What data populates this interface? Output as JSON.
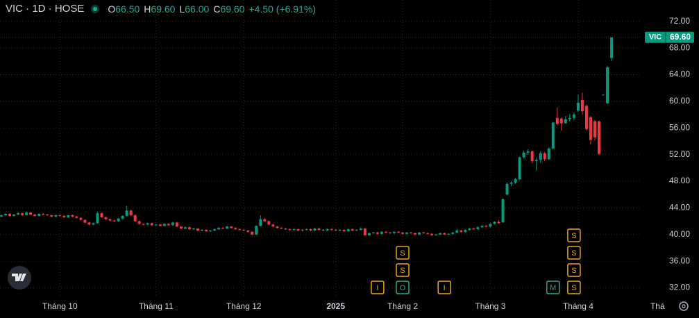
{
  "header": {
    "symbol": "VIC · 1D · HOSE",
    "open_key": "O",
    "open": "66.50",
    "high_key": "H",
    "high": "69.60",
    "low_key": "L",
    "low": "66.00",
    "close_key": "C",
    "close": "69.60",
    "change": "+4.50 (+6.91%)"
  },
  "chart_data": {
    "type": "candlestick",
    "up_color": "#089981",
    "down_color": "#f23645",
    "grid": true,
    "xlim": [
      -0.33,
      152.8
    ],
    "ylim": [
      30.6,
      75.2
    ],
    "yticks": [
      {
        "value": 32,
        "label": "32.00"
      },
      {
        "value": 36,
        "label": "36.00"
      },
      {
        "value": 40,
        "label": "40.00"
      },
      {
        "value": 44,
        "label": "44.00"
      },
      {
        "value": 48,
        "label": "48.00"
      },
      {
        "value": 52,
        "label": "52.00"
      },
      {
        "value": 56,
        "label": "56.00"
      },
      {
        "value": 60,
        "label": "60.00"
      },
      {
        "value": 64,
        "label": "64.00"
      },
      {
        "value": 68,
        "label": "68.00"
      },
      {
        "value": 72,
        "label": "72.00"
      }
    ],
    "xticks": [
      {
        "value": 14,
        "label": "Tháng 10"
      },
      {
        "value": 37,
        "label": "Tháng 11"
      },
      {
        "value": 58,
        "label": "Tháng 12"
      },
      {
        "value": 80,
        "label": "2025"
      },
      {
        "value": 96,
        "label": "Tháng 2"
      },
      {
        "value": 117,
        "label": "Tháng 3"
      },
      {
        "value": 138,
        "label": "Tháng 4"
      },
      {
        "value": 157,
        "label": "Thá"
      }
    ],
    "price_tag": {
      "name": "VIC",
      "label": "69.60"
    },
    "events": [
      {
        "at": 90,
        "label": "I",
        "color": "#f7a600"
      },
      {
        "at": 96,
        "label": "O",
        "color": "#22ab94"
      },
      {
        "at": 96,
        "label": "S",
        "color": "#f7a600"
      },
      {
        "at": 96,
        "label": "S",
        "color": "#f7a600"
      },
      {
        "at": 106,
        "label": "I",
        "color": "#f7a600"
      },
      {
        "at": 132,
        "label": "M",
        "color": "#22ab94"
      },
      {
        "at": 137,
        "label": "S",
        "color": "#f7a600"
      },
      {
        "at": 137,
        "label": "S",
        "color": "#f7a600"
      },
      {
        "at": 137,
        "label": "S",
        "color": "#f7a600"
      },
      {
        "at": 137,
        "label": "S",
        "color": "#f7a600"
      }
    ],
    "ohlc": [
      [
        42.7,
        43.0,
        42.6,
        42.9
      ],
      [
        42.9,
        43.2,
        42.8,
        43.1
      ],
      [
        43.1,
        43.2,
        42.7,
        42.8
      ],
      [
        42.8,
        43.1,
        42.7,
        43.0
      ],
      [
        43.0,
        43.4,
        42.9,
        43.2
      ],
      [
        43.2,
        43.3,
        42.8,
        42.9
      ],
      [
        42.9,
        43.5,
        42.9,
        43.3
      ],
      [
        43.3,
        43.4,
        42.9,
        43.0
      ],
      [
        43.0,
        43.1,
        42.7,
        42.8
      ],
      [
        42.8,
        43.2,
        42.7,
        43.1
      ],
      [
        43.1,
        43.2,
        42.9,
        43.0
      ],
      [
        43.0,
        43.1,
        42.8,
        42.9
      ],
      [
        42.9,
        43.0,
        42.6,
        42.7
      ],
      [
        42.7,
        43.0,
        42.6,
        42.9
      ],
      [
        42.9,
        43.0,
        42.7,
        42.8
      ],
      [
        42.8,
        42.9,
        42.5,
        42.6
      ],
      [
        42.6,
        43.0,
        42.5,
        42.9
      ],
      [
        42.9,
        43.0,
        42.6,
        42.7
      ],
      [
        42.7,
        42.8,
        42.4,
        42.5
      ],
      [
        42.5,
        42.6,
        42.1,
        42.2
      ],
      [
        42.2,
        42.3,
        41.7,
        41.8
      ],
      [
        41.8,
        41.9,
        41.4,
        41.5
      ],
      [
        41.5,
        41.8,
        41.4,
        41.7
      ],
      [
        41.7,
        43.4,
        41.6,
        43.2
      ],
      [
        43.2,
        43.3,
        42.5,
        42.6
      ],
      [
        42.6,
        42.7,
        42.2,
        42.3
      ],
      [
        42.3,
        42.4,
        42.0,
        42.1
      ],
      [
        42.1,
        42.2,
        41.9,
        42.0
      ],
      [
        42.0,
        42.5,
        41.9,
        42.4
      ],
      [
        42.4,
        42.9,
        42.3,
        42.8
      ],
      [
        42.8,
        44.3,
        42.7,
        43.6
      ],
      [
        43.6,
        43.7,
        42.8,
        42.9
      ],
      [
        42.9,
        43.0,
        41.9,
        42.0
      ],
      [
        42.0,
        42.1,
        41.5,
        41.6
      ],
      [
        41.6,
        41.7,
        41.4,
        41.5
      ],
      [
        41.5,
        41.8,
        41.4,
        41.7
      ],
      [
        41.7,
        41.8,
        41.3,
        41.4
      ],
      [
        41.4,
        41.6,
        41.3,
        41.5
      ],
      [
        41.5,
        41.6,
        41.2,
        41.3
      ],
      [
        41.3,
        41.7,
        41.2,
        41.6
      ],
      [
        41.6,
        41.7,
        41.3,
        41.4
      ],
      [
        41.4,
        41.9,
        41.3,
        41.8
      ],
      [
        41.8,
        41.9,
        41.1,
        41.2
      ],
      [
        41.2,
        41.3,
        40.8,
        40.9
      ],
      [
        40.9,
        41.2,
        40.8,
        41.1
      ],
      [
        41.1,
        41.2,
        40.7,
        40.8
      ],
      [
        40.8,
        41.0,
        40.7,
        40.9
      ],
      [
        40.9,
        41.0,
        40.5,
        40.6
      ],
      [
        40.6,
        40.8,
        40.5,
        40.7
      ],
      [
        40.7,
        40.8,
        40.4,
        40.5
      ],
      [
        40.5,
        40.7,
        40.4,
        40.6
      ],
      [
        40.6,
        40.9,
        40.5,
        40.8
      ],
      [
        40.8,
        41.1,
        40.7,
        41.0
      ],
      [
        41.0,
        41.1,
        40.8,
        40.9
      ],
      [
        40.9,
        41.3,
        40.8,
        41.2
      ],
      [
        41.2,
        41.3,
        40.9,
        41.0
      ],
      [
        41.0,
        41.1,
        40.7,
        40.8
      ],
      [
        40.8,
        40.9,
        40.6,
        40.7
      ],
      [
        40.7,
        40.8,
        40.5,
        40.6
      ],
      [
        40.6,
        40.7,
        40.3,
        40.4
      ],
      [
        40.4,
        40.5,
        39.9,
        40.0
      ],
      [
        40.0,
        41.4,
        39.9,
        41.3
      ],
      [
        41.3,
        42.9,
        41.2,
        42.3
      ],
      [
        42.3,
        42.5,
        41.9,
        42.0
      ],
      [
        42.0,
        42.1,
        41.4,
        41.5
      ],
      [
        41.5,
        41.6,
        41.1,
        41.2
      ],
      [
        41.2,
        41.3,
        40.9,
        41.0
      ],
      [
        41.0,
        41.1,
        40.8,
        40.9
      ],
      [
        40.9,
        41.0,
        40.7,
        40.8
      ],
      [
        40.8,
        40.9,
        40.6,
        40.7
      ],
      [
        40.7,
        40.9,
        40.6,
        40.8
      ],
      [
        40.8,
        40.9,
        40.5,
        40.6
      ],
      [
        40.6,
        40.8,
        40.5,
        40.7
      ],
      [
        40.7,
        40.9,
        40.6,
        40.8
      ],
      [
        40.8,
        40.9,
        40.5,
        40.6
      ],
      [
        40.6,
        41.0,
        40.5,
        40.9
      ],
      [
        40.9,
        41.0,
        40.6,
        40.7
      ],
      [
        40.7,
        40.8,
        40.5,
        40.6
      ],
      [
        40.6,
        40.9,
        40.5,
        40.8
      ],
      [
        40.8,
        40.9,
        40.6,
        40.7
      ],
      [
        40.7,
        40.8,
        40.5,
        40.6
      ],
      [
        40.6,
        40.8,
        40.5,
        40.7
      ],
      [
        40.7,
        40.8,
        40.4,
        40.5
      ],
      [
        40.5,
        40.9,
        40.4,
        40.8
      ],
      [
        40.8,
        40.9,
        40.5,
        40.6
      ],
      [
        40.6,
        40.8,
        40.5,
        40.7
      ],
      [
        40.7,
        41.1,
        40.6,
        40.9
      ],
      [
        40.9,
        41.0,
        39.8,
        39.9
      ],
      [
        39.9,
        40.3,
        39.8,
        40.2
      ],
      [
        40.2,
        40.4,
        40.1,
        40.3
      ],
      [
        40.3,
        40.4,
        40.0,
        40.1
      ],
      [
        40.1,
        40.5,
        40.0,
        40.4
      ],
      [
        40.4,
        40.5,
        40.2,
        40.3
      ],
      [
        40.3,
        40.4,
        40.1,
        40.2
      ],
      [
        40.2,
        40.5,
        40.1,
        40.4
      ],
      [
        40.4,
        40.5,
        40.2,
        40.3
      ],
      [
        40.3,
        40.4,
        40.0,
        40.1
      ],
      [
        40.1,
        40.4,
        40.0,
        40.3
      ],
      [
        40.3,
        40.4,
        40.1,
        40.2
      ],
      [
        40.2,
        40.3,
        39.9,
        40.0
      ],
      [
        40.0,
        40.4,
        39.9,
        40.3
      ],
      [
        40.3,
        40.4,
        40.1,
        40.2
      ],
      [
        40.2,
        40.3,
        40.0,
        40.1
      ],
      [
        40.1,
        40.2,
        39.8,
        39.9
      ],
      [
        39.9,
        40.1,
        39.8,
        40.0
      ],
      [
        40.0,
        40.3,
        39.9,
        40.2
      ],
      [
        40.2,
        40.3,
        39.9,
        40.0
      ],
      [
        40.0,
        40.2,
        39.9,
        40.1
      ],
      [
        40.1,
        40.4,
        40.0,
        40.3
      ],
      [
        40.3,
        40.8,
        40.2,
        40.6
      ],
      [
        40.6,
        40.7,
        40.3,
        40.4
      ],
      [
        40.4,
        40.8,
        40.3,
        40.7
      ],
      [
        40.7,
        41.0,
        40.6,
        40.9
      ],
      [
        40.9,
        41.0,
        40.7,
        40.8
      ],
      [
        40.8,
        41.2,
        40.7,
        41.1
      ],
      [
        41.1,
        41.4,
        41.0,
        41.3
      ],
      [
        41.3,
        41.4,
        41.1,
        41.2
      ],
      [
        41.2,
        41.7,
        41.1,
        41.6
      ],
      [
        41.6,
        42.0,
        41.5,
        41.9
      ],
      [
        41.9,
        42.1,
        41.6,
        41.7
      ],
      [
        41.8,
        45.4,
        41.8,
        45.3
      ],
      [
        46.0,
        47.8,
        45.9,
        47.6
      ],
      [
        47.6,
        48.0,
        47.3,
        47.8
      ],
      [
        47.8,
        48.5,
        47.6,
        48.3
      ],
      [
        48.3,
        51.7,
        48.2,
        51.6
      ],
      [
        51.6,
        52.6,
        51.4,
        52.3
      ],
      [
        52.3,
        52.8,
        52.0,
        52.5
      ],
      [
        52.5,
        52.6,
        50.8,
        51.0
      ],
      [
        51.0,
        51.5,
        49.6,
        51.2
      ],
      [
        51.2,
        52.5,
        50.8,
        52.2
      ],
      [
        52.2,
        52.4,
        51.0,
        51.3
      ],
      [
        51.3,
        53.1,
        51.2,
        52.9
      ],
      [
        52.9,
        56.9,
        52.8,
        56.8
      ],
      [
        57.5,
        59.1,
        56.4,
        56.6
      ],
      [
        57.4,
        57.6,
        55.6,
        56.7
      ],
      [
        56.7,
        57.8,
        56.6,
        57.3
      ],
      [
        57.3,
        58.1,
        57.0,
        57.5
      ],
      [
        57.5,
        58.3,
        57.2,
        58.0
      ],
      [
        58.6,
        61.0,
        58.4,
        59.8
      ],
      [
        60.2,
        61.3,
        58.0,
        58.5
      ],
      [
        59.3,
        59.5,
        55.6,
        55.8
      ],
      [
        57.6,
        57.8,
        53.5,
        54.2
      ],
      [
        57.0,
        57.2,
        54.1,
        54.6
      ],
      [
        57.0,
        57.1,
        51.9,
        52.1
      ],
      [
        60.9,
        61.0,
        60.9,
        61.0
      ],
      [
        59.7,
        65.3,
        59.6,
        65.1
      ],
      [
        66.5,
        69.6,
        66.0,
        69.6
      ]
    ]
  }
}
